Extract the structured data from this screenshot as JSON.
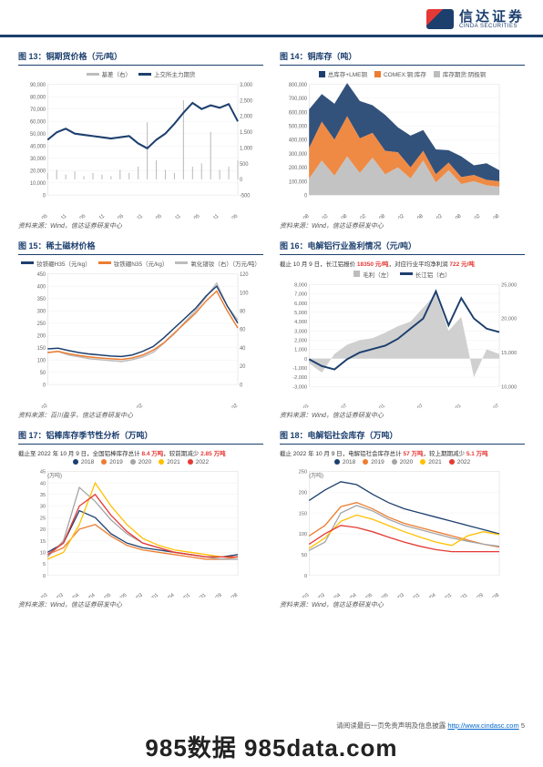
{
  "company": {
    "cn": "信达证券",
    "en": "CINDA SECURITIES"
  },
  "panels": [
    {
      "title": "图 13：铜期货价格（元/吨）",
      "legend": [
        {
          "label": "基差（右）",
          "color": "#bdbdbd"
        },
        {
          "label": "上交所主力期货",
          "color": "#1c3f6e"
        }
      ],
      "type": "dual-line",
      "y_left": {
        "min": 0,
        "max": 90000,
        "step": 10000
      },
      "y_right": {
        "min": -500,
        "max": 3000,
        "step": 500
      },
      "x_labels": [
        "2017-05",
        "2017-11",
        "2018-05",
        "2018-11",
        "2019-05",
        "2019-11",
        "2020-05",
        "2020-11",
        "2021-05",
        "2021-11",
        "2022-05"
      ],
      "series": [
        {
          "color": "#bdbdbd",
          "axis": "right",
          "style": "spiky",
          "points": [
            200,
            300,
            150,
            250,
            100,
            200,
            150,
            100,
            300,
            200,
            400,
            1800,
            600,
            300,
            200,
            2500,
            400,
            500,
            1500,
            300,
            400,
            600
          ]
        },
        {
          "color": "#1c3f6e",
          "axis": "left",
          "width": 1.8,
          "points": [
            45000,
            51000,
            54000,
            50000,
            49000,
            48000,
            47000,
            46000,
            47000,
            48000,
            42000,
            38000,
            45000,
            50000,
            58000,
            67000,
            75000,
            70000,
            73000,
            71000,
            74000,
            60000
          ]
        }
      ],
      "source": "资料来源：Wind，信达证券研发中心"
    },
    {
      "title": "图 14：铜库存（吨）",
      "legend": [
        {
          "label": "总库存+LME铜",
          "color": "#1c3f6e",
          "shape": "sq"
        },
        {
          "label": "COMEX:铜:库存",
          "color": "#ed7d31",
          "shape": "sq"
        },
        {
          "label": "库存期货:阴极铜",
          "color": "#bdbdbd",
          "shape": "sq"
        }
      ],
      "type": "stacked-area",
      "y_left": {
        "min": 0,
        "max": 800000,
        "step": 100000
      },
      "x_labels": [
        "2016-08",
        "2017-02",
        "2017-08",
        "2018-02",
        "2018-08",
        "2019-02",
        "2019-08",
        "2020-02",
        "2020-08",
        "2021-02",
        "2021-08"
      ],
      "stacks": [
        {
          "color": "#bdbdbd",
          "points": [
            120000,
            250000,
            140000,
            280000,
            160000,
            270000,
            150000,
            200000,
            120000,
            250000,
            90000,
            180000,
            80000,
            100000,
            70000,
            60000
          ]
        },
        {
          "color": "#ed7d31",
          "points": [
            220000,
            280000,
            260000,
            290000,
            250000,
            180000,
            170000,
            110000,
            80000,
            70000,
            60000,
            55000,
            50000,
            45000,
            40000,
            40000
          ]
        },
        {
          "color": "#1c3f6e",
          "points": [
            280000,
            200000,
            260000,
            240000,
            270000,
            200000,
            260000,
            180000,
            230000,
            150000,
            180000,
            90000,
            150000,
            70000,
            120000,
            80000
          ]
        }
      ],
      "source": "资料来源：Wind，信达证券研发中心"
    },
    {
      "title": "图 15：稀土磁材价格",
      "legend": [
        {
          "label": "钕铁硼H35（元/kg）",
          "color": "#1c3f6e"
        },
        {
          "label": "钕铁硼N35（元/kg）",
          "color": "#ed7d31"
        },
        {
          "label": "氧化镨钕（右）（万元/吨）",
          "color": "#bdbdbd"
        }
      ],
      "type": "multi-line-dual",
      "y_left": {
        "min": 0,
        "max": 450,
        "step": 50
      },
      "y_right": {
        "min": 0,
        "max": 120,
        "step": 20
      },
      "x_labels": [
        "2018-01-02",
        "2020-01-02",
        "2022-01-02"
      ],
      "series": [
        {
          "color": "#bdbdbd",
          "axis": "right",
          "points": [
            35,
            36,
            32,
            30,
            28,
            27,
            26,
            25,
            27,
            30,
            35,
            45,
            55,
            68,
            80,
            95,
            110,
            85,
            70
          ]
        },
        {
          "color": "#ed7d31",
          "axis": "left",
          "points": [
            130,
            135,
            125,
            118,
            112,
            108,
            105,
            102,
            108,
            120,
            140,
            170,
            210,
            250,
            290,
            340,
            380,
            300,
            230
          ]
        },
        {
          "color": "#1c3f6e",
          "axis": "left",
          "points": [
            145,
            148,
            138,
            130,
            124,
            120,
            116,
            114,
            120,
            135,
            155,
            190,
            230,
            270,
            310,
            360,
            400,
            320,
            250
          ]
        }
      ],
      "source": "资料来源：百川盈孚，信达证券研发中心"
    },
    {
      "title": "图 16：电解铝行业盈利情况（元/吨）",
      "note_parts": [
        "截止 10 月 9 日，长江铝报价 ",
        "18350 元/吨",
        "，对应行业平均净利润 ",
        "722 元/吨"
      ],
      "legend": [
        {
          "label": "毛利（左）",
          "color": "#bdbdbd",
          "shape": "sq"
        },
        {
          "label": "长江铝（右）",
          "color": "#1c3f6e"
        }
      ],
      "type": "area-line-dual",
      "y_left": {
        "min": -3000,
        "max": 8000,
        "step": 1000
      },
      "y_right": {
        "min": 10000,
        "max": 25000,
        "step": 5000
      },
      "x_labels": [
        "2020-01",
        "2020-07",
        "2021-01",
        "2021-07",
        "2022-01",
        "2022-07"
      ],
      "area": {
        "color": "#d0d0d0",
        "points": [
          -500,
          -1500,
          500,
          1500,
          2000,
          2200,
          2800,
          3500,
          4000,
          5500,
          7000,
          3000,
          4500,
          -2000,
          1000,
          500
        ]
      },
      "line": {
        "color": "#1c3f6e",
        "width": 1.8,
        "points": [
          14000,
          13000,
          12500,
          14000,
          15000,
          15500,
          16000,
          17000,
          18500,
          20000,
          24000,
          19000,
          23000,
          20000,
          18500,
          18000
        ]
      },
      "source": "资料来源：Wind，信达证券研发中心"
    },
    {
      "title": "图 17：铝棒库存季节性分析（万吨）",
      "note_parts": [
        "截止至 2022 年 10 月 9 日，全国铝棒库存总计 ",
        "8.4 万吨",
        "，较前期减少 ",
        "2.85 万吨"
      ],
      "legend": [
        {
          "label": "2018",
          "color": "#1c3f6e",
          "shape": "dot"
        },
        {
          "label": "2019",
          "color": "#ed7d31",
          "shape": "dot"
        },
        {
          "label": "2020",
          "color": "#a5a5a5",
          "shape": "dot"
        },
        {
          "label": "2021",
          "color": "#ffc000",
          "shape": "dot"
        },
        {
          "label": "2022",
          "color": "#e53935",
          "shape": "dot"
        }
      ],
      "type": "seasonal",
      "y_left": {
        "min": 0,
        "max": 45,
        "step": 5,
        "unit": "(万吨)"
      },
      "x_labels": [
        "01/03",
        "02/03",
        "03/04",
        "04/04",
        "05/05",
        "06/05",
        "07/03",
        "08/01",
        "09/04",
        "10/01",
        "10/31",
        "11/29",
        "12/28"
      ],
      "series": [
        {
          "color": "#1c3f6e",
          "points": [
            10,
            14,
            28,
            25,
            18,
            14,
            12,
            11,
            10,
            9,
            8,
            8,
            9
          ]
        },
        {
          "color": "#ed7d31",
          "points": [
            9,
            12,
            20,
            22,
            17,
            13,
            11,
            10,
            9,
            8,
            7,
            7,
            8
          ]
        },
        {
          "color": "#a5a5a5",
          "points": [
            8,
            15,
            38,
            32,
            24,
            18,
            14,
            12,
            10,
            9,
            8,
            7,
            7
          ]
        },
        {
          "color": "#ffc000",
          "points": [
            7,
            10,
            22,
            40,
            30,
            22,
            16,
            13,
            11,
            10,
            9,
            8,
            8
          ]
        },
        {
          "color": "#e53935",
          "points": [
            9,
            14,
            30,
            35,
            26,
            19,
            14,
            12,
            10,
            9,
            8,
            8,
            8
          ]
        }
      ],
      "source": "资料来源：Wind，信达证券研发中心"
    },
    {
      "title": "图 18：电解铝社会库存（万吨）",
      "note_parts": [
        "截止 2022 年 10 月 9 日，电解铝社会库存总计 ",
        "57 万吨",
        "，较上期期减少 ",
        "5.1 万吨"
      ],
      "legend": [
        {
          "label": "2018",
          "color": "#1c3f6e",
          "shape": "dot"
        },
        {
          "label": "2019",
          "color": "#ed7d31",
          "shape": "dot"
        },
        {
          "label": "2020",
          "color": "#a5a5a5",
          "shape": "dot"
        },
        {
          "label": "2021",
          "color": "#ffc000",
          "shape": "dot"
        },
        {
          "label": "2022",
          "color": "#e53935",
          "shape": "dot"
        }
      ],
      "type": "seasonal",
      "y_left": {
        "min": 0,
        "max": 250,
        "step": 50,
        "unit": "(万吨)"
      },
      "x_labels": [
        "01/03",
        "02/03",
        "03/04",
        "04/04",
        "05/05",
        "06/05",
        "07/03",
        "08/01",
        "09/04",
        "10/01",
        "10/31",
        "11/29",
        "12/28"
      ],
      "series": [
        {
          "color": "#1c3f6e",
          "points": [
            180,
            205,
            225,
            218,
            195,
            175,
            160,
            150,
            140,
            130,
            120,
            110,
            100
          ]
        },
        {
          "color": "#ed7d31",
          "points": [
            95,
            120,
            165,
            175,
            160,
            140,
            125,
            115,
            105,
            95,
            85,
            75,
            68
          ]
        },
        {
          "color": "#a5a5a5",
          "points": [
            60,
            80,
            150,
            168,
            155,
            135,
            120,
            110,
            100,
            90,
            82,
            75,
            70
          ]
        },
        {
          "color": "#ffc000",
          "points": [
            65,
            90,
            130,
            145,
            135,
            120,
            105,
            92,
            80,
            72,
            95,
            105,
            98
          ]
        },
        {
          "color": "#e53935",
          "points": [
            75,
            100,
            120,
            115,
            105,
            92,
            80,
            70,
            62,
            57,
            57,
            57,
            57
          ]
        }
      ],
      "source": "资料来源：Wind，信达证券研发中心"
    }
  ],
  "footer": {
    "text": "请阅读最后一页免责声明及信息披露 ",
    "url": "http://www.cindasc.com",
    "page": "5"
  },
  "watermark": "985数据 985data.com"
}
